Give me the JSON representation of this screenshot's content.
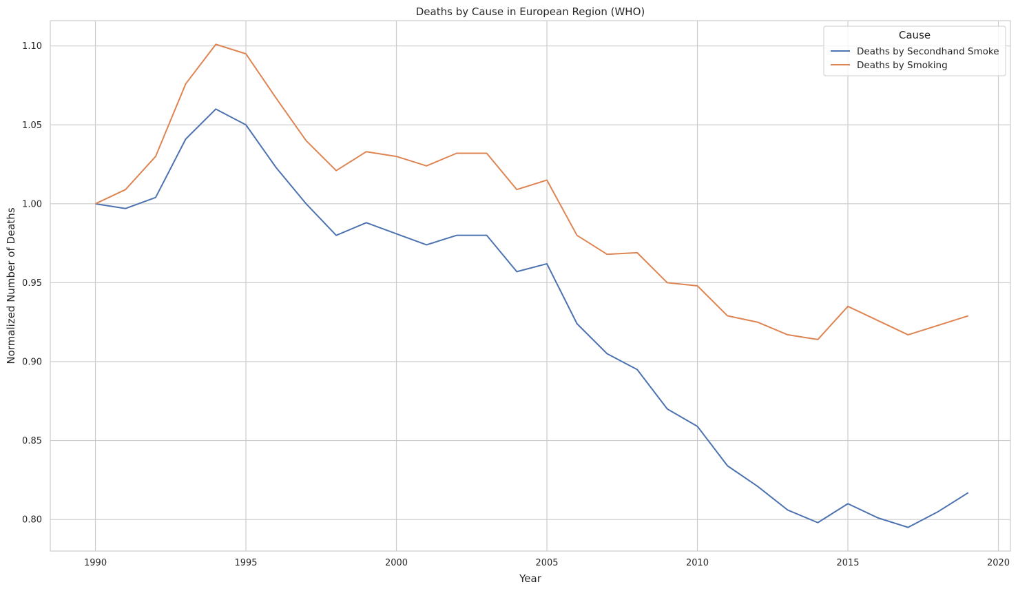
{
  "chart_data": {
    "type": "line",
    "title": "Deaths by Cause in European Region (WHO)",
    "xlabel": "Year",
    "ylabel": "Normalized Number of Deaths",
    "xlim": [
      1988.5,
      2020.4
    ],
    "ylim": [
      0.78,
      1.116
    ],
    "xticks": [
      1990,
      1995,
      2000,
      2005,
      2010,
      2015,
      2020
    ],
    "yticks": [
      0.8,
      0.85,
      0.9,
      0.95,
      1.0,
      1.05,
      1.1
    ],
    "ytick_labels": [
      "0.80",
      "0.85",
      "0.90",
      "0.95",
      "1.00",
      "1.05",
      "1.10"
    ],
    "grid": true,
    "legend": {
      "title": "Cause",
      "placement": "top-right"
    },
    "x": [
      1990,
      1991,
      1992,
      1993,
      1994,
      1995,
      1996,
      1997,
      1998,
      1999,
      2000,
      2001,
      2002,
      2003,
      2004,
      2005,
      2006,
      2007,
      2008,
      2009,
      2010,
      2011,
      2012,
      2013,
      2014,
      2015,
      2016,
      2017,
      2018,
      2019
    ],
    "series": [
      {
        "name": "Deaths by Secondhand Smoke",
        "color": "#4c72b0",
        "values": [
          1.0,
          0.997,
          1.004,
          1.041,
          1.06,
          1.05,
          1.023,
          1.0,
          0.98,
          0.988,
          0.981,
          0.974,
          0.98,
          0.98,
          0.957,
          0.962,
          0.924,
          0.905,
          0.895,
          0.87,
          0.859,
          0.834,
          0.821,
          0.806,
          0.798,
          0.81,
          0.801,
          0.795,
          0.805,
          0.817
        ]
      },
      {
        "name": "Deaths by Smoking",
        "color": "#dd8452",
        "values": [
          1.0,
          1.009,
          1.03,
          1.076,
          1.101,
          1.095,
          1.067,
          1.04,
          1.021,
          1.033,
          1.03,
          1.024,
          1.032,
          1.032,
          1.009,
          1.015,
          0.98,
          0.968,
          0.969,
          0.95,
          0.948,
          0.929,
          0.925,
          0.917,
          0.914,
          0.935,
          0.926,
          0.917,
          0.923,
          0.929
        ]
      }
    ]
  }
}
